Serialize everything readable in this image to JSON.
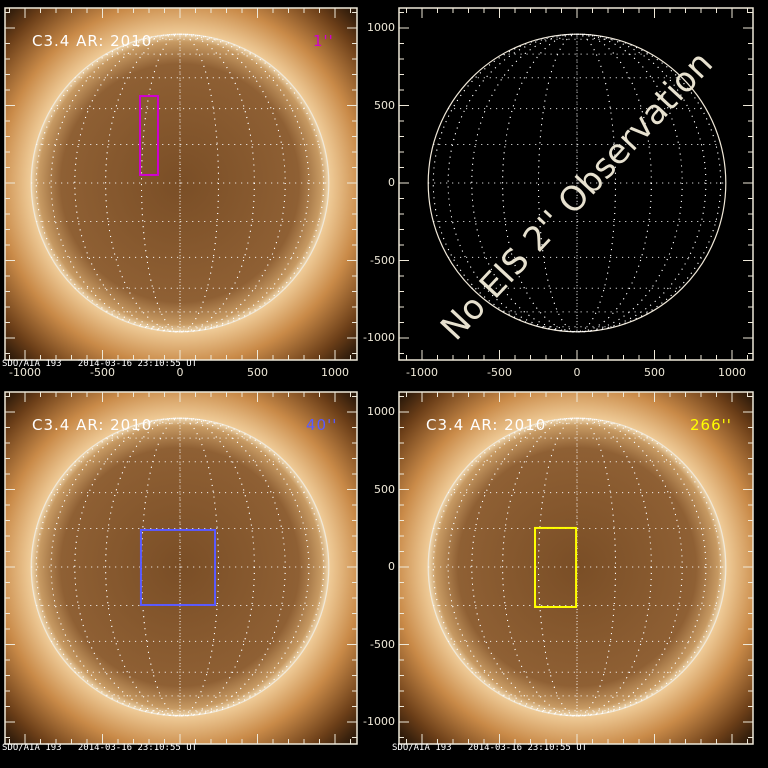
{
  "panels": [
    {
      "id": "top-left",
      "label": "C3.4 AR: 2010",
      "slit": "1''",
      "slit_color": "#d000d0",
      "has_image": true,
      "fov_arcsec": {
        "x": [
          -258,
          -142
        ],
        "y": [
          52,
          561
        ]
      },
      "stamp": "SDO/AIA 193   2014-03-16 23:10:55 UT",
      "show_x_labels": true,
      "show_y_labels": false
    },
    {
      "id": "top-right",
      "has_image": false,
      "message": "No EIS 2'' Observation",
      "show_x_labels": true,
      "show_y_labels": true
    },
    {
      "id": "bottom-left",
      "label": "C3.4 AR: 2010",
      "slit": "40''",
      "slit_color": "#5a5aff",
      "has_image": true,
      "fov_arcsec": {
        "x": [
          -252,
          226
        ],
        "y": [
          -245,
          239
        ]
      },
      "stamp": "SDO/AIA 193   2014-03-16 23:10:55 UT",
      "show_x_labels": false,
      "show_y_labels": false
    },
    {
      "id": "bottom-right",
      "label": "C3.4 AR: 2010",
      "slit": "266''",
      "slit_color": "#ffff00",
      "has_image": true,
      "fov_arcsec": {
        "x": [
          -271,
          -6
        ],
        "y": [
          -258,
          252
        ]
      },
      "stamp": "SDO/AIA 193   2014-03-16 23:10:55 UT",
      "show_x_labels": false,
      "show_y_labels": true
    }
  ],
  "axes": {
    "units": "arcsec",
    "range": [
      -1150,
      1150
    ],
    "tick_labels": [
      "-1000",
      "-500",
      "0",
      "500",
      "1000"
    ],
    "tick_values": [
      -1000,
      -500,
      0,
      500,
      1000
    ],
    "solar_radius": 960
  },
  "colors": {
    "axis": "#eee8d8",
    "corona": "#c88a45",
    "disk": "#8a5a2c",
    "background": "#000000"
  }
}
